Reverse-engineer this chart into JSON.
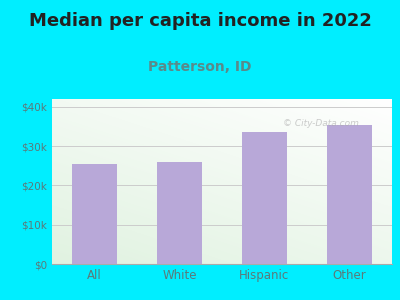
{
  "title": "Median per capita income in 2022",
  "subtitle": "Patterson, ID",
  "categories": [
    "All",
    "White",
    "Hispanic",
    "Other"
  ],
  "values": [
    25500,
    26000,
    33500,
    35500
  ],
  "bar_color": "#b8a8d8",
  "title_fontsize": 13,
  "subtitle_fontsize": 10,
  "subtitle_color": "#5a8a8a",
  "title_color": "#222222",
  "bg_color": "#00eeff",
  "tick_color": "#5a7a7a",
  "yticks": [
    0,
    10000,
    20000,
    30000,
    40000
  ],
  "ytick_labels": [
    "$0",
    "$10k",
    "$20k",
    "$30k",
    "$40k"
  ],
  "ylim": [
    0,
    42000
  ],
  "bar_width": 0.52
}
